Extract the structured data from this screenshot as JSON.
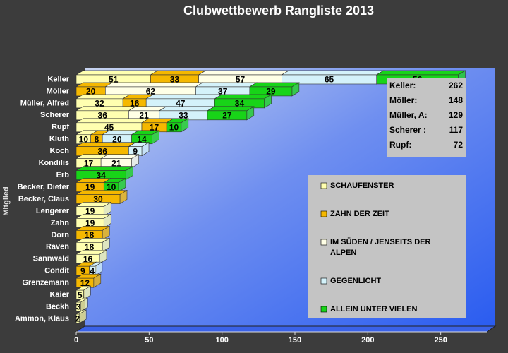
{
  "chart_data": {
    "type": "stacked-bar-3d",
    "title": "Clubwettbewerb Rangliste 2013",
    "y_label": "Mitglied",
    "categories": [
      "Keller",
      "Möller",
      "Müller, Alfred",
      "Scherer",
      "Rupf",
      "Kluth",
      "Koch",
      "Kondilis",
      "Erb",
      "Becker, Dieter",
      "Becker, Claus",
      "Lengerer",
      "Zahn",
      "Dorn",
      "Raven",
      "Sannwald",
      "Condit",
      "Grenzemann",
      "Kaier",
      "Beckh",
      "Ammon, Klaus"
    ],
    "series": [
      {
        "name": "SCHAUFENSTER",
        "color": "#ffffb0",
        "values": [
          51,
          null,
          32,
          36,
          45,
          10,
          null,
          17,
          null,
          null,
          null,
          19,
          19,
          null,
          18,
          16,
          null,
          null,
          5,
          3,
          2
        ]
      },
      {
        "name": "ZAHN DER ZEIT",
        "color": "#f5b800",
        "values": [
          33,
          20,
          16,
          null,
          17,
          8,
          36,
          null,
          null,
          19,
          30,
          null,
          null,
          18,
          null,
          null,
          9,
          12,
          null,
          null,
          null
        ]
      },
      {
        "name": "IM SÜDEN / JENSEITS DER ALPEN",
        "color": "#ffffe6",
        "values": [
          57,
          62,
          null,
          21,
          null,
          null,
          null,
          21,
          null,
          null,
          null,
          null,
          null,
          null,
          null,
          null,
          null,
          null,
          null,
          null,
          null
        ]
      },
      {
        "name": "GEGENLICHT",
        "color": "#d4f2fa",
        "values": [
          65,
          37,
          47,
          33,
          null,
          20,
          9,
          null,
          null,
          null,
          null,
          null,
          null,
          null,
          null,
          null,
          4,
          null,
          null,
          null,
          null
        ]
      },
      {
        "name": "ALLEIN UNTER VIELEN",
        "color": "#18d418",
        "values": [
          56,
          29,
          34,
          27,
          10,
          14,
          null,
          null,
          34,
          10,
          null,
          null,
          null,
          null,
          null,
          null,
          null,
          null,
          null,
          null,
          null
        ]
      }
    ],
    "xlim": [
      0,
      270
    ],
    "xticks": [
      0,
      50,
      100,
      150,
      200,
      250
    ],
    "annotation": [
      {
        "label": "Keller:",
        "value": 262
      },
      {
        "label": "Möller:",
        "value": 148
      },
      {
        "label": "Müller, A:",
        "value": 129
      },
      {
        "label": "Scherer :",
        "value": 117
      },
      {
        "label": "Rupf:",
        "value": 72
      }
    ]
  }
}
